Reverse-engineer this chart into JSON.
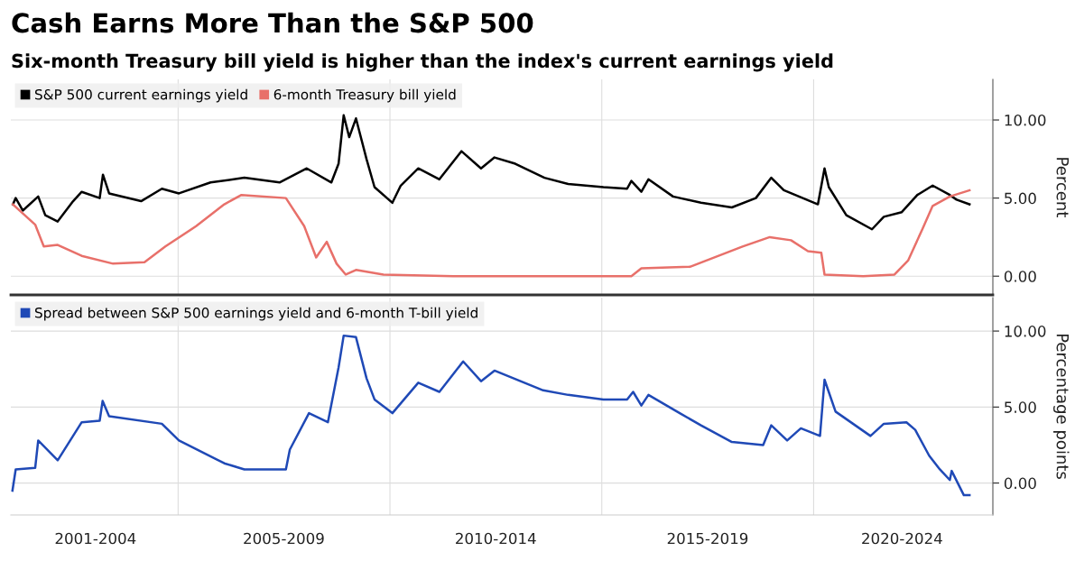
{
  "chart_data": [
    {
      "type": "line",
      "title": "Cash Earns More Than the S&P 500",
      "subtitle": "Six-month Treasury bill yield is higher than the index's current earnings yield",
      "series": [
        {
          "name": "S&P 500 current earnings yield",
          "color": "#000000",
          "x": [
            "2001-02-07",
            "2001-03-03",
            "2001-05-03",
            "2001-09-13",
            "2001-11-13",
            "2002-02-28",
            "2002-07-11",
            "2002-09-23",
            "2003-02-25",
            "2003-03-25",
            "2003-05-17",
            "2004-02-17",
            "2004-08-14",
            "2005-01-08",
            "2005-10-08",
            "2006-07-26",
            "2007-05-25",
            "2008-01-15",
            "2008-08-14",
            "2008-10-15",
            "2008-11-28",
            "2009-01-15",
            "2009-03-14",
            "2009-06-13",
            "2009-08-21",
            "2010-01-22",
            "2010-04-04",
            "2010-09-02",
            "2011-03-03",
            "2011-09-09",
            "2012-02-25",
            "2012-06-20",
            "2012-12-16",
            "2013-08-25",
            "2014-03-17",
            "2015-01-15",
            "2015-08-07",
            "2015-09-13",
            "2015-12-08",
            "2016-02-07",
            "2016-09-06",
            "2017-05-05",
            "2018-01-26",
            "2018-08-21",
            "2019-01-01",
            "2019-04-19",
            "2020-02-07",
            "2020-04-04",
            "2020-05-11",
            "2020-10-09",
            "2021-05-18",
            "2021-08-28",
            "2022-01-30",
            "2022-06-13",
            "2022-10-23",
            "2023-03-20",
            "2023-05-17",
            "2023-09-06"
          ],
          "values": [
            4.6,
            5.0,
            4.2,
            5.1,
            3.9,
            3.5,
            4.8,
            5.4,
            5.0,
            6.5,
            5.3,
            4.8,
            5.6,
            5.3,
            6.0,
            6.3,
            6.0,
            6.9,
            6.0,
            7.2,
            10.3,
            8.9,
            10.1,
            7.5,
            5.7,
            4.7,
            5.8,
            6.9,
            6.2,
            8.0,
            6.9,
            7.6,
            7.2,
            6.3,
            5.9,
            5.7,
            5.6,
            6.1,
            5.4,
            6.2,
            5.1,
            4.7,
            4.4,
            5.0,
            6.3,
            5.5,
            4.6,
            6.9,
            5.7,
            3.9,
            3.0,
            3.8,
            4.1,
            5.2,
            5.8,
            5.2,
            4.9,
            4.6
          ]
        },
        {
          "name": "6-month Treasury bill yield",
          "color": "#e8706a",
          "x": [
            "2001-02-07",
            "2001-08-18",
            "2001-10-31",
            "2002-02-28",
            "2002-09-23",
            "2003-06-20",
            "2004-03-17",
            "2004-09-13",
            "2005-06-05",
            "2006-02-03",
            "2006-07-01",
            "2007-07-19",
            "2007-12-24",
            "2008-04-05",
            "2008-07-05",
            "2008-09-28",
            "2008-12-16",
            "2009-03-14",
            "2009-11-06",
            "2011-07-01",
            "2015-09-13",
            "2015-12-08",
            "2017-01-30",
            "2018-04-28",
            "2018-12-19",
            "2019-06-20",
            "2019-11-13",
            "2020-03-07",
            "2020-04-04",
            "2021-03-03",
            "2021-11-28",
            "2022-03-25",
            "2022-07-26",
            "2022-10-23",
            "2023-03-20",
            "2023-09-06"
          ],
          "values": [
            4.6,
            3.3,
            1.9,
            2.0,
            1.3,
            0.8,
            0.9,
            1.9,
            3.2,
            4.6,
            5.2,
            5.0,
            3.2,
            1.2,
            2.2,
            0.8,
            0.1,
            0.4,
            0.1,
            0.0,
            0.0,
            0.5,
            0.6,
            1.9,
            2.5,
            2.3,
            1.6,
            1.5,
            0.1,
            0.0,
            0.1,
            1.0,
            3.0,
            4.5,
            5.1,
            5.5
          ]
        }
      ],
      "ylabel": "Percent",
      "ylim": [
        -1.2,
        12.6
      ],
      "yticks": [
        {
          "value": 0,
          "label": "0.00"
        },
        {
          "value": 5,
          "label": "5.00"
        },
        {
          "value": 10,
          "label": "10.00"
        }
      ],
      "xlim": [
        "2001-01-20",
        "2024-03-25"
      ],
      "xticks": [
        {
          "value": "2005-01-01",
          "label": null
        },
        {
          "value": "2010-01-01",
          "label": null
        },
        {
          "value": "2015-01-01",
          "label": null
        },
        {
          "value": "2020-01-01",
          "label": null
        }
      ],
      "tick_labels": "y",
      "grid": true,
      "legend": "top left",
      "line_style": "solid",
      "marker": "none"
    },
    {
      "type": "line",
      "series": [
        {
          "name": "Spread between S&P 500 earnings yield and 6-month T-bill yield",
          "color": "#1f49b6",
          "x": [
            "2001-02-03",
            "2001-03-03",
            "2001-08-18",
            "2001-09-13",
            "2002-02-28",
            "2002-09-23",
            "2003-02-25",
            "2003-03-22",
            "2003-05-17",
            "2004-08-14",
            "2005-01-08",
            "2006-02-03",
            "2006-07-26",
            "2007-07-19",
            "2007-08-22",
            "2008-02-03",
            "2008-07-15",
            "2008-10-15",
            "2008-11-28",
            "2009-03-14",
            "2009-06-13",
            "2009-08-21",
            "2010-01-22",
            "2010-09-02",
            "2011-03-03",
            "2011-09-24",
            "2012-02-25",
            "2012-06-20",
            "2013-08-14",
            "2014-03-17",
            "2015-01-15",
            "2015-08-07",
            "2015-09-28",
            "2015-12-08",
            "2016-02-07",
            "2016-11-03",
            "2017-05-05",
            "2018-01-26",
            "2018-10-23",
            "2019-01-01",
            "2019-05-18",
            "2019-09-13",
            "2020-02-25",
            "2020-04-04",
            "2020-07-08",
            "2021-05-05",
            "2021-08-28",
            "2022-03-11",
            "2022-05-26",
            "2022-09-23",
            "2022-12-24",
            "2023-03-20",
            "2023-04-05",
            "2023-07-19",
            "2023-09-06"
          ],
          "values": [
            -0.5,
            0.9,
            1.0,
            2.8,
            1.5,
            4.0,
            4.1,
            5.4,
            4.4,
            3.9,
            2.8,
            1.3,
            0.9,
            0.9,
            2.2,
            4.6,
            4.0,
            7.6,
            9.7,
            9.6,
            6.9,
            5.5,
            4.6,
            6.6,
            6.0,
            8.0,
            6.7,
            7.4,
            6.1,
            5.8,
            5.5,
            5.5,
            6.0,
            5.1,
            5.8,
            4.6,
            3.8,
            2.7,
            2.5,
            3.8,
            2.8,
            3.6,
            3.1,
            6.8,
            4.7,
            3.1,
            3.9,
            4.0,
            3.5,
            1.8,
            0.9,
            0.2,
            0.8,
            -0.8,
            -0.8
          ]
        }
      ],
      "ylabel": "Percentage points",
      "ylim": [
        -2.1,
        12.2
      ],
      "yticks": [
        {
          "value": 0,
          "label": "0.00"
        },
        {
          "value": 5,
          "label": "5.00"
        },
        {
          "value": 10,
          "label": "10.00"
        }
      ],
      "xlim": [
        "2001-01-20",
        "2024-03-25"
      ],
      "xticks": [
        {
          "value": "2005-01-01",
          "label": null
        },
        {
          "value": "2010-01-01",
          "label": null
        },
        {
          "value": "2015-01-01",
          "label": null
        },
        {
          "value": "2020-01-01",
          "label": null
        },
        {
          "value": "2003-01-20",
          "label": "2001-2004"
        },
        {
          "value": "2007-07-01",
          "label": "2005-2009"
        },
        {
          "value": "2012-07-01",
          "label": "2010-2014"
        },
        {
          "value": "2017-07-01",
          "label": "2015-2019"
        },
        {
          "value": "2022-02-01",
          "label": "2020-2024"
        }
      ],
      "grid": true,
      "legend": "top left",
      "line_style": "solid",
      "marker": "none"
    }
  ]
}
